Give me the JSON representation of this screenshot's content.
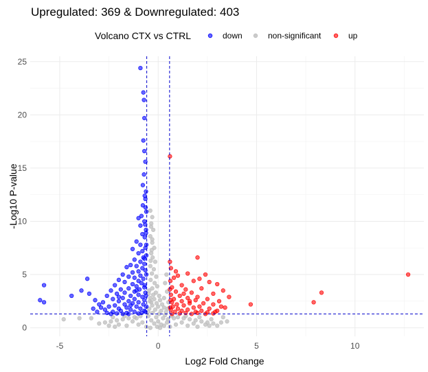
{
  "chart_data": {
    "type": "scatter",
    "title": "Upregulated: 369 & Downregulated: 403",
    "xlabel": "Log2 Fold Change",
    "ylabel": "-Log10 P-value",
    "xlim": [
      -6.5,
      13.5
    ],
    "ylim": [
      -0.8,
      25.5
    ],
    "x_ticks": [
      -5,
      0,
      5,
      10
    ],
    "y_ticks": [
      0,
      5,
      10,
      15,
      20,
      25
    ],
    "grid": true,
    "legend": {
      "title": "Volcano CTX vs CTRL",
      "position": "top",
      "entries": [
        {
          "label": "down",
          "color": "#0000ff"
        },
        {
          "label": "non-significant",
          "color": "#bebebe"
        },
        {
          "label": "up",
          "color": "#ff0000"
        }
      ]
    },
    "thresholds": {
      "fc_lines": [
        -0.58,
        0.58
      ],
      "p_line": 1.3,
      "color": "#0000cc"
    },
    "series": [
      {
        "name": "down",
        "color": "#0000ff",
        "points": [
          [
            -0.9,
            24.4
          ],
          [
            -0.75,
            22.1
          ],
          [
            -0.72,
            21.4
          ],
          [
            -0.7,
            19.7
          ],
          [
            -0.75,
            17.6
          ],
          [
            -0.7,
            16.6
          ],
          [
            -0.65,
            15.6
          ],
          [
            -0.72,
            14.4
          ],
          [
            -0.78,
            13.4
          ],
          [
            -0.62,
            12.8
          ],
          [
            -0.65,
            12.1
          ],
          [
            -0.78,
            11.5
          ],
          [
            -0.6,
            10.9
          ],
          [
            -0.85,
            10.5
          ],
          [
            -1.0,
            10.3
          ],
          [
            -0.7,
            10.0
          ],
          [
            -0.9,
            9.6
          ],
          [
            -0.62,
            9.2
          ],
          [
            -0.8,
            8.8
          ],
          [
            -0.68,
            8.5
          ],
          [
            -1.1,
            8.1
          ],
          [
            -0.9,
            7.8
          ],
          [
            -0.65,
            7.5
          ],
          [
            -1.3,
            7.4
          ],
          [
            -0.8,
            7.2
          ],
          [
            -1.0,
            7.0
          ],
          [
            -0.6,
            6.8
          ],
          [
            -0.75,
            6.6
          ],
          [
            -1.2,
            6.4
          ],
          [
            -0.9,
            6.2
          ],
          [
            -0.7,
            6.0
          ],
          [
            -1.4,
            5.9
          ],
          [
            -1.1,
            5.8
          ],
          [
            -0.8,
            5.6
          ],
          [
            -1.6,
            5.7
          ],
          [
            -0.65,
            5.4
          ],
          [
            -1.0,
            5.3
          ],
          [
            -1.3,
            5.2
          ],
          [
            -1.8,
            5.0
          ],
          [
            -0.9,
            4.9
          ],
          [
            -1.5,
            4.8
          ],
          [
            -1.2,
            4.7
          ],
          [
            -0.75,
            4.6
          ],
          [
            -2.0,
            4.5
          ],
          [
            -1.0,
            4.4
          ],
          [
            -1.7,
            4.3
          ],
          [
            -0.85,
            4.2
          ],
          [
            -1.3,
            4.1
          ],
          [
            -2.2,
            4.0
          ],
          [
            -1.1,
            3.9
          ],
          [
            -0.7,
            3.8
          ],
          [
            -1.5,
            3.7
          ],
          [
            -1.9,
            3.6
          ],
          [
            -0.95,
            3.6
          ],
          [
            -2.4,
            3.5
          ],
          [
            -1.2,
            3.4
          ],
          [
            -0.65,
            3.3
          ],
          [
            -1.7,
            3.3
          ],
          [
            -2.1,
            3.2
          ],
          [
            -1.0,
            3.1
          ],
          [
            -1.4,
            3.0
          ],
          [
            -2.6,
            3.0
          ],
          [
            -0.8,
            2.9
          ],
          [
            -1.8,
            2.8
          ],
          [
            -1.2,
            2.7
          ],
          [
            -2.3,
            2.7
          ],
          [
            -0.7,
            2.6
          ],
          [
            -1.5,
            2.5
          ],
          [
            -2.0,
            2.5
          ],
          [
            -1.0,
            2.4
          ],
          [
            -2.8,
            2.4
          ],
          [
            -1.3,
            2.3
          ],
          [
            -1.7,
            2.2
          ],
          [
            -0.75,
            2.2
          ],
          [
            -2.2,
            2.1
          ],
          [
            -1.1,
            2.0
          ],
          [
            -2.5,
            2.0
          ],
          [
            -1.6,
            1.9
          ],
          [
            -0.9,
            1.8
          ],
          [
            -2.0,
            1.8
          ],
          [
            -1.4,
            1.7
          ],
          [
            -2.7,
            1.7
          ],
          [
            -0.7,
            1.6
          ],
          [
            -1.9,
            1.6
          ],
          [
            -1.2,
            1.5
          ],
          [
            -2.3,
            1.5
          ],
          [
            -1.6,
            1.4
          ],
          [
            -0.85,
            1.4
          ],
          [
            -2.1,
            1.35
          ],
          [
            -1.0,
            1.35
          ],
          [
            -1.5,
            1.3
          ],
          [
            -1.8,
            1.3
          ],
          [
            -2.4,
            1.3
          ],
          [
            -0.65,
            1.5
          ],
          [
            -0.6,
            2.0
          ],
          [
            -0.62,
            3.0
          ],
          [
            -0.68,
            4.0
          ],
          [
            -0.6,
            5.0
          ],
          [
            -0.7,
            6.5
          ],
          [
            -0.6,
            7.8
          ],
          [
            -0.62,
            8.9
          ],
          [
            -0.66,
            9.7
          ],
          [
            -0.64,
            11.3
          ],
          [
            -0.68,
            12.4
          ],
          [
            -3.0,
            2.2
          ],
          [
            -2.9,
            1.9
          ],
          [
            -3.2,
            2.6
          ],
          [
            -3.5,
            3.2
          ],
          [
            -3.3,
            1.8
          ],
          [
            -3.6,
            4.6
          ],
          [
            -3.9,
            3.5
          ],
          [
            -4.4,
            3.0
          ],
          [
            -5.8,
            4.0
          ],
          [
            -6.0,
            2.6
          ],
          [
            -5.8,
            2.4
          ],
          [
            -2.6,
            1.4
          ],
          [
            -3.1,
            1.5
          ],
          [
            -2.0,
            2.9
          ],
          [
            -1.1,
            3.5
          ],
          [
            -1.4,
            2.1
          ]
        ]
      },
      {
        "name": "non-significant",
        "color": "#bebebe",
        "points": [
          [
            -0.4,
            11.0
          ],
          [
            -0.3,
            10.4
          ],
          [
            -0.35,
            9.8
          ],
          [
            -0.25,
            9.2
          ],
          [
            -0.4,
            8.6
          ],
          [
            -0.3,
            8.0
          ],
          [
            -0.2,
            7.5
          ],
          [
            -0.35,
            7.0
          ],
          [
            -0.28,
            6.6
          ],
          [
            -0.15,
            6.2
          ],
          [
            -0.4,
            5.8
          ],
          [
            -0.22,
            5.5
          ],
          [
            -0.32,
            5.1
          ],
          [
            -0.1,
            4.8
          ],
          [
            -0.38,
            4.5
          ],
          [
            -0.18,
            4.2
          ],
          [
            -0.05,
            3.9
          ],
          [
            -0.3,
            3.7
          ],
          [
            -0.45,
            3.5
          ],
          [
            -0.12,
            3.3
          ],
          [
            -0.25,
            3.1
          ],
          [
            0.05,
            3.0
          ],
          [
            -0.4,
            2.8
          ],
          [
            -0.2,
            2.7
          ],
          [
            0.1,
            2.6
          ],
          [
            -0.35,
            2.4
          ],
          [
            -0.08,
            2.3
          ],
          [
            0.2,
            2.2
          ],
          [
            -0.3,
            2.1
          ],
          [
            0.0,
            2.0
          ],
          [
            0.3,
            1.9
          ],
          [
            -0.45,
            1.8
          ],
          [
            -0.15,
            1.7
          ],
          [
            0.15,
            1.6
          ],
          [
            0.4,
            1.5
          ],
          [
            -0.28,
            1.4
          ],
          [
            0.05,
            1.3
          ],
          [
            0.35,
            1.2
          ],
          [
            -0.5,
            1.1
          ],
          [
            -0.1,
            1.0
          ],
          [
            0.25,
            0.9
          ],
          [
            0.5,
            0.8
          ],
          [
            -0.35,
            0.7
          ],
          [
            0.0,
            0.6
          ],
          [
            0.45,
            0.5
          ],
          [
            -0.2,
            0.4
          ],
          [
            0.15,
            0.3
          ],
          [
            0.3,
            0.2
          ],
          [
            -0.05,
            0.1
          ],
          [
            0.1,
            0.0
          ],
          [
            -0.4,
            0.0
          ],
          [
            -0.9,
            1.1
          ],
          [
            -1.2,
            1.0
          ],
          [
            -1.5,
            0.9
          ],
          [
            -1.8,
            0.8
          ],
          [
            -2.1,
            0.7
          ],
          [
            -2.4,
            0.6
          ],
          [
            -2.7,
            0.5
          ],
          [
            -3.0,
            0.4
          ],
          [
            -1.0,
            0.3
          ],
          [
            -1.6,
            0.2
          ],
          [
            -2.2,
            0.1
          ],
          [
            -0.8,
            0.5
          ],
          [
            -1.3,
            0.6
          ],
          [
            -2.0,
            0.3
          ],
          [
            -2.5,
            0.2
          ],
          [
            0.7,
            1.1
          ],
          [
            1.0,
            1.0
          ],
          [
            1.3,
            0.9
          ],
          [
            1.6,
            0.8
          ],
          [
            1.9,
            0.7
          ],
          [
            2.2,
            0.6
          ],
          [
            2.5,
            0.5
          ],
          [
            2.8,
            0.4
          ],
          [
            3.2,
            0.5
          ],
          [
            0.9,
            0.3
          ],
          [
            1.5,
            0.2
          ],
          [
            2.0,
            0.1
          ],
          [
            2.6,
            0.2
          ],
          [
            1.2,
            0.5
          ],
          [
            1.8,
            0.4
          ],
          [
            2.4,
            0.3
          ],
          [
            3.0,
            0.2
          ],
          [
            3.5,
            0.6
          ],
          [
            -3.4,
            0.9
          ],
          [
            -4.8,
            0.8
          ],
          [
            -4.0,
            0.9
          ],
          [
            -0.5,
            1.5
          ],
          [
            -0.42,
            2.5
          ],
          [
            -0.48,
            3.2
          ],
          [
            -0.38,
            6.3
          ],
          [
            -0.33,
            7.3
          ],
          [
            -0.3,
            8.3
          ],
          [
            -0.36,
            9.5
          ],
          [
            0.48,
            1.8
          ],
          [
            0.52,
            2.4
          ],
          [
            0.45,
            3.4
          ],
          [
            0.42,
            5.0
          ],
          [
            0.35,
            4.2
          ],
          [
            0.3,
            2.8
          ],
          [
            -1.1,
            0.9
          ],
          [
            -1.7,
            1.1
          ],
          [
            -2.3,
            1.0
          ],
          [
            0.8,
            0.9
          ],
          [
            1.4,
            1.1
          ],
          [
            2.1,
            1.0
          ],
          [
            2.7,
            0.8
          ],
          [
            3.3,
            1.0
          ],
          [
            -0.6,
            0.1
          ],
          [
            0.6,
            0.1
          ]
        ]
      },
      {
        "name": "up",
        "color": "#ff0000",
        "points": [
          [
            0.6,
            16.1
          ],
          [
            0.6,
            6.2
          ],
          [
            2.0,
            6.6
          ],
          [
            0.65,
            5.6
          ],
          [
            1.5,
            5.1
          ],
          [
            2.4,
            5.0
          ],
          [
            1.0,
            4.9
          ],
          [
            0.8,
            4.7
          ],
          [
            2.6,
            4.3
          ],
          [
            3.0,
            4.1
          ],
          [
            1.8,
            4.4
          ],
          [
            1.2,
            4.0
          ],
          [
            0.7,
            3.8
          ],
          [
            2.2,
            3.7
          ],
          [
            1.4,
            3.6
          ],
          [
            3.3,
            3.5
          ],
          [
            0.9,
            3.4
          ],
          [
            1.7,
            3.3
          ],
          [
            2.8,
            3.2
          ],
          [
            0.65,
            3.1
          ],
          [
            1.1,
            3.0
          ],
          [
            2.0,
            2.9
          ],
          [
            3.6,
            2.9
          ],
          [
            1.5,
            2.8
          ],
          [
            0.8,
            2.7
          ],
          [
            2.5,
            2.7
          ],
          [
            1.9,
            2.6
          ],
          [
            1.2,
            2.5
          ],
          [
            3.1,
            2.5
          ],
          [
            0.7,
            2.4
          ],
          [
            2.3,
            2.3
          ],
          [
            1.6,
            2.3
          ],
          [
            0.95,
            2.2
          ],
          [
            2.8,
            2.2
          ],
          [
            1.3,
            2.1
          ],
          [
            2.1,
            2.0
          ],
          [
            0.75,
            2.0
          ],
          [
            1.8,
            1.9
          ],
          [
            3.4,
            1.9
          ],
          [
            1.0,
            1.8
          ],
          [
            2.6,
            1.8
          ],
          [
            1.5,
            1.7
          ],
          [
            0.65,
            1.7
          ],
          [
            2.2,
            1.6
          ],
          [
            1.2,
            1.6
          ],
          [
            3.0,
            1.6
          ],
          [
            1.9,
            1.5
          ],
          [
            0.85,
            1.5
          ],
          [
            2.5,
            1.45
          ],
          [
            1.4,
            1.4
          ],
          [
            2.0,
            1.4
          ],
          [
            1.1,
            1.35
          ],
          [
            2.8,
            1.35
          ],
          [
            1.7,
            1.3
          ],
          [
            0.7,
            1.3
          ],
          [
            2.4,
            1.3
          ],
          [
            0.62,
            4.4
          ],
          [
            0.6,
            3.6
          ],
          [
            0.63,
            2.6
          ],
          [
            0.61,
            1.9
          ],
          [
            4.7,
            2.2
          ],
          [
            7.9,
            2.4
          ],
          [
            8.3,
            3.3
          ],
          [
            12.7,
            5.0
          ],
          [
            3.2,
            2.0
          ],
          [
            1.3,
            3.2
          ],
          [
            2.1,
            4.6
          ],
          [
            0.9,
            5.3
          ],
          [
            1.6,
            2.5
          ],
          [
            2.9,
            1.5
          ]
        ]
      }
    ]
  }
}
